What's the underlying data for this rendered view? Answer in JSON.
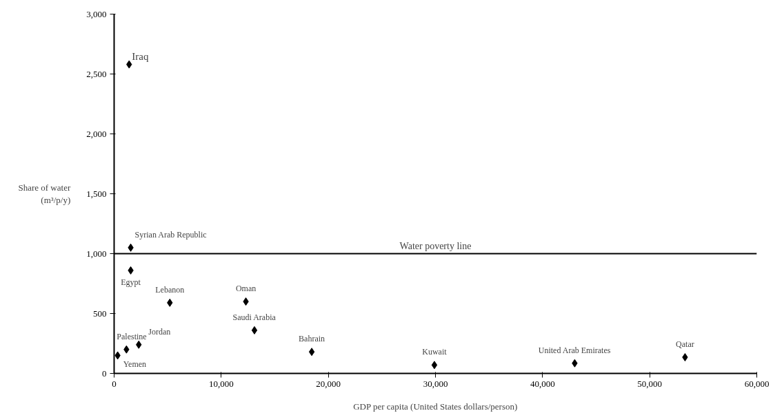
{
  "chart_data": {
    "type": "scatter",
    "xlabel": "GDP per capita (United States dollars/person)",
    "ylabel": "Share of water\n(m³/p/y)",
    "xlim": [
      0,
      60000
    ],
    "ylim": [
      0,
      3000
    ],
    "xticks": [
      0,
      {
        "value": 10000,
        "label": "10,000"
      },
      {
        "value": 20000,
        "label": "20,000"
      },
      {
        "value": 30000,
        "label": "30,000"
      },
      {
        "value": 40000,
        "label": "40,000"
      },
      {
        "value": 50000,
        "label": "50,000"
      },
      {
        "value": 60000,
        "label": "60,000"
      }
    ],
    "yticks": [
      0,
      500,
      {
        "value": 1000,
        "label": "1,000"
      },
      {
        "value": 1500,
        "label": "1,500"
      },
      {
        "value": 2000,
        "label": "2,000"
      },
      {
        "value": 2500,
        "label": "2,500"
      },
      {
        "value": 3000,
        "label": "3,000"
      }
    ],
    "marker": "diamond",
    "grid": false,
    "series": [
      {
        "color": "#000000",
        "x": [
          1400,
          1550,
          1550,
          5200,
          12300,
          13100,
          18450,
          29900,
          43000,
          53300,
          2300,
          1150,
          330
        ],
        "values": [
          2580,
          1050,
          860,
          590,
          600,
          360,
          180,
          70,
          85,
          135,
          240,
          200,
          150
        ]
      }
    ],
    "ref_lines": [
      {
        "axis": "y",
        "value": 1000,
        "label": "Water poverty line",
        "color": "#000000"
      }
    ],
    "annotations": [
      {
        "text": "Iraq",
        "x": 1400,
        "y": 2580
      },
      {
        "text": "Syrian Arab Republic",
        "x": 1550,
        "y": 1050
      },
      {
        "text": "Egypt",
        "x": 1550,
        "y": 860
      },
      {
        "text": "Lebanon",
        "x": 5200,
        "y": 590
      },
      {
        "text": "Oman",
        "x": 12300,
        "y": 600
      },
      {
        "text": "Saudi Arabia",
        "x": 13100,
        "y": 360
      },
      {
        "text": "Bahrain",
        "x": 18450,
        "y": 180
      },
      {
        "text": "Kuwait",
        "x": 29900,
        "y": 70
      },
      {
        "text": "United Arab Emirates",
        "x": 43000,
        "y": 85
      },
      {
        "text": "Qatar",
        "x": 53300,
        "y": 135
      },
      {
        "text": "Jordan",
        "x": 2300,
        "y": 240
      },
      {
        "text": "Palestine",
        "x": 1150,
        "y": 200
      },
      {
        "text": "Yemen",
        "x": 330,
        "y": 150
      }
    ]
  }
}
